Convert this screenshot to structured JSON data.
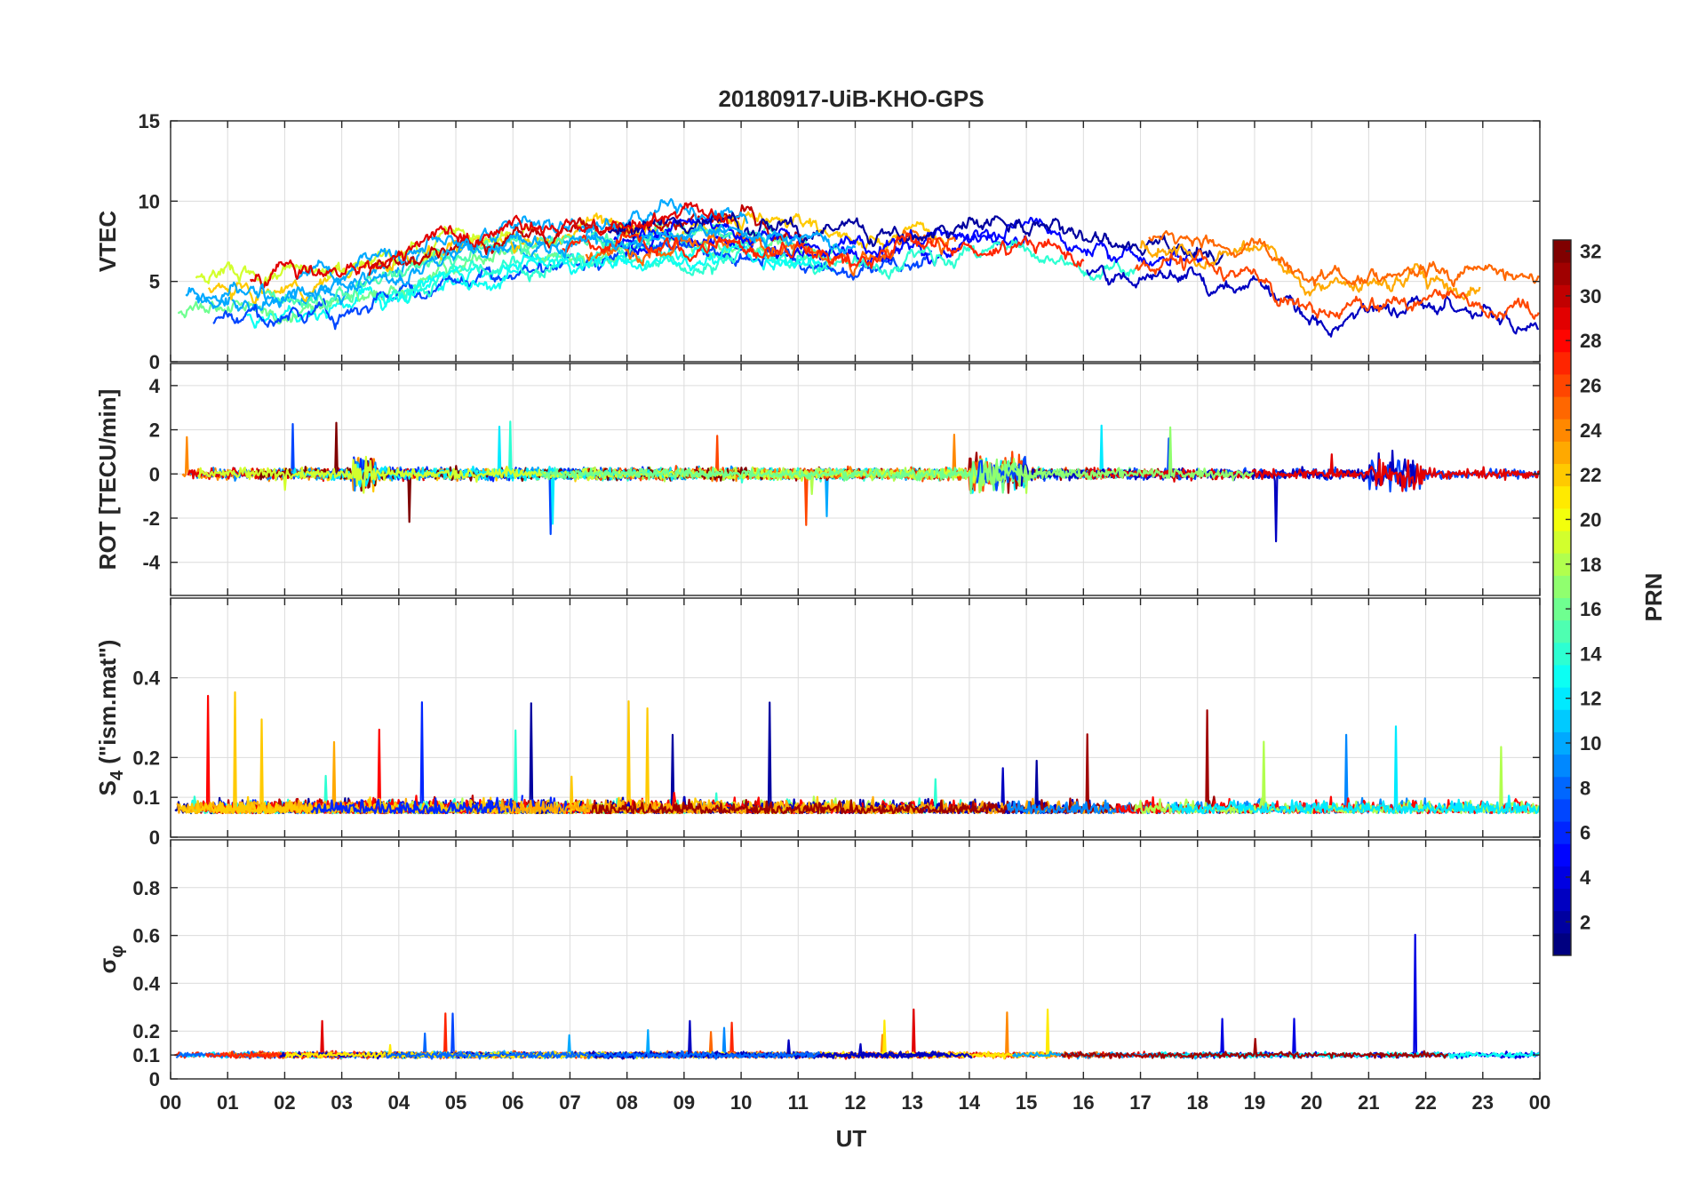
{
  "chart_data": {
    "type": "line",
    "title": "20180917-UiB-KHO-GPS",
    "xlabel": "UT",
    "x_tick_labels": [
      "00",
      "01",
      "02",
      "03",
      "04",
      "05",
      "06",
      "07",
      "08",
      "09",
      "10",
      "11",
      "12",
      "13",
      "14",
      "15",
      "16",
      "17",
      "18",
      "19",
      "20",
      "21",
      "22",
      "23",
      "00"
    ],
    "xlim_hours": [
      0,
      24
    ],
    "grid": true,
    "colorbar": {
      "label": "PRN",
      "range": [
        1,
        32
      ],
      "colormap": "jet",
      "ticks": [
        "2",
        "4",
        "6",
        "8",
        "10",
        "12",
        "14",
        "16",
        "18",
        "20",
        "22",
        "24",
        "26",
        "28",
        "30",
        "32"
      ],
      "placement": "right"
    },
    "panels": [
      {
        "ylabel": "VTEC",
        "ylim": [
          0,
          15
        ],
        "yticks": [
          0,
          5,
          10,
          15
        ],
        "ytick_labels": [
          "0",
          "5",
          "10",
          "15"
        ],
        "typical_profile": {
          "x": [
            0,
            2,
            3,
            4,
            5,
            6,
            7,
            8,
            9,
            10,
            11,
            12,
            13,
            14,
            15,
            16,
            17,
            18,
            19,
            20,
            21,
            22,
            23,
            24
          ],
          "y": [
            4,
            4,
            4.5,
            5.5,
            6.5,
            7,
            7.5,
            7.5,
            8,
            8,
            7.5,
            7,
            7.5,
            8,
            8,
            7,
            6.5,
            6.5,
            6,
            4,
            4,
            4.5,
            4,
            3.5
          ]
        }
      },
      {
        "ylabel": "ROT [TECU/min]",
        "ylim": [
          -5.5,
          5
        ],
        "yticks": [
          -4,
          -2,
          0,
          2,
          4
        ],
        "ytick_labels": [
          "-4",
          "-2",
          "0",
          "2",
          "4"
        ]
      },
      {
        "ylabel_main": "S",
        "ylabel_sub": "4",
        "ylabel_tail": " (\"ism.mat\")",
        "ylim": [
          0,
          0.6
        ],
        "yticks": [
          0,
          0.1,
          0.2,
          0.4
        ],
        "ytick_labels": [
          "0",
          "0.1",
          "0.2",
          "0.4"
        ]
      },
      {
        "ylabel_main": "σ",
        "ylabel_sub": "φ",
        "ylim": [
          0,
          1
        ],
        "yticks": [
          0,
          0.1,
          0.2,
          0.4,
          0.6,
          0.8
        ],
        "ytick_labels": [
          "0",
          "0.1",
          "0.2",
          "0.4",
          "0.6",
          "0.8"
        ]
      }
    ]
  }
}
